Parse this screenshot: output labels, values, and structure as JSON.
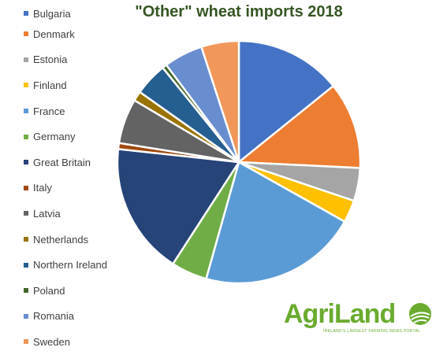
{
  "chart_data": {
    "type": "pie",
    "title": "\"Other\" wheat imports 2018",
    "legend_position": "left",
    "categories": [
      "Bulgaria",
      "Denmark",
      "Estonia",
      "Finland",
      "France",
      "Germany",
      "Great Britain",
      "Italy",
      "Latvia",
      "Netherlands",
      "Northern Ireland",
      "Poland",
      "Romania",
      "Sweden"
    ],
    "values": [
      14.2,
      11.6,
      4.4,
      3.0,
      21.2,
      4.8,
      17.6,
      0.8,
      6.0,
      1.3,
      4.4,
      0.6,
      5.2,
      5.0
    ],
    "colors": [
      "#4472C4",
      "#ED7D31",
      "#A5A5A5",
      "#FFC000",
      "#5B9BD5",
      "#70AD47",
      "#264478",
      "#9E480E",
      "#636363",
      "#997300",
      "#255E91",
      "#43682B",
      "#698ED0",
      "#F1975A"
    ]
  },
  "logo": {
    "name": "AgriLand",
    "tagline": "IRELAND'S LARGEST FARMING NEWS PORTAL"
  }
}
